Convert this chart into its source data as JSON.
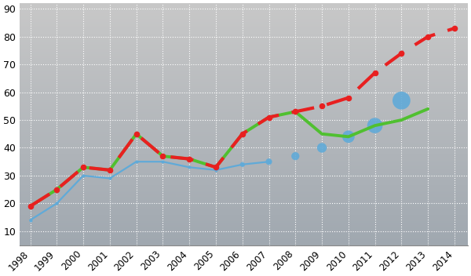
{
  "years_red": [
    1998,
    1999,
    2000,
    2001,
    2002,
    2003,
    2004,
    2005,
    2006,
    2007,
    2008,
    2009,
    2010,
    2011,
    2012,
    2013,
    2014
  ],
  "values_red": [
    19,
    25,
    33,
    32,
    45,
    37,
    36,
    33,
    45,
    51,
    53,
    55,
    58,
    67,
    74,
    80,
    83
  ],
  "years_green": [
    1998,
    1999,
    2000,
    2001,
    2002,
    2003,
    2004,
    2005,
    2006,
    2007,
    2008,
    2009,
    2010,
    2011,
    2012,
    2013
  ],
  "values_green": [
    19,
    25,
    33,
    32,
    45,
    37,
    36,
    33,
    45,
    51,
    53,
    45,
    44,
    48,
    50,
    54
  ],
  "years_blue_line": [
    1998,
    1999,
    2000,
    2001,
    2002,
    2003,
    2004,
    2005,
    2006,
    2007
  ],
  "values_blue_line": [
    14,
    20,
    30,
    29,
    35,
    35,
    33,
    32,
    34,
    35
  ],
  "years_blue_dots": [
    2006,
    2007,
    2008,
    2009,
    2010,
    2011,
    2012
  ],
  "values_blue_dots": [
    34,
    35,
    37,
    40,
    44,
    48,
    57
  ],
  "dot_sizes": [
    20,
    35,
    55,
    80,
    130,
    200,
    270
  ],
  "bg_color_top": "#c8c8c8",
  "bg_color_bottom": "#a0a8b0",
  "red_color": "#e82020",
  "green_color": "#50c030",
  "blue_color": "#60aad8",
  "grid_color": "#ffffff",
  "ylim": [
    5,
    92
  ],
  "yticks": [
    10,
    20,
    30,
    40,
    50,
    60,
    70,
    80,
    90
  ],
  "xlim": [
    1997.6,
    2014.5
  ]
}
